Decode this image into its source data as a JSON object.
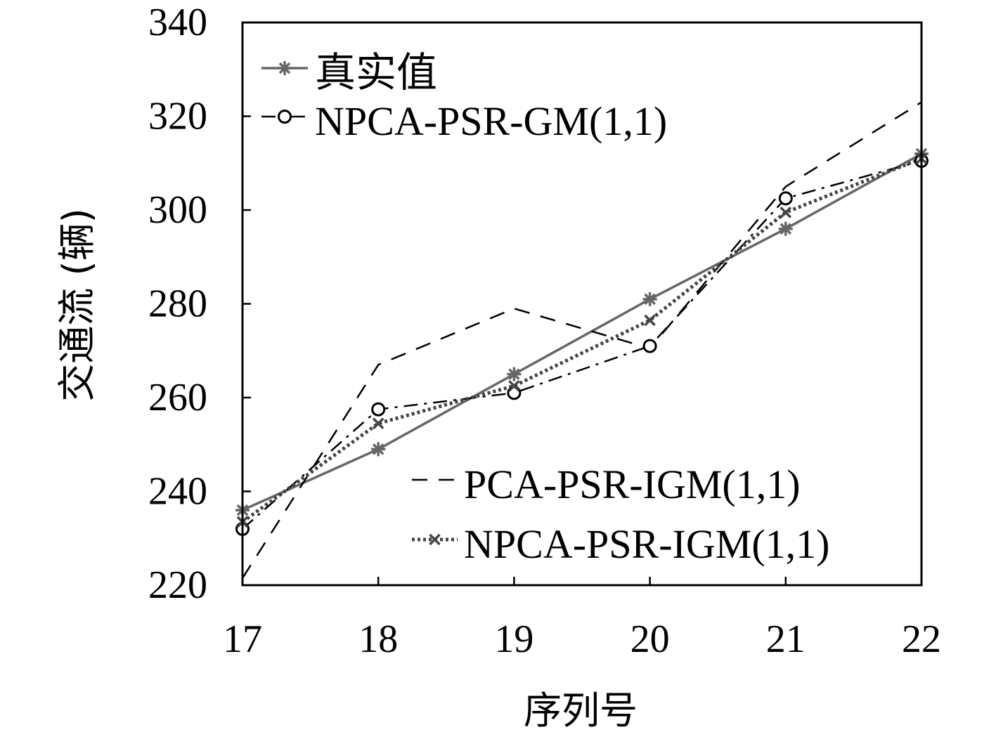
{
  "chart_data": {
    "type": "line",
    "title": "",
    "xlabel": "序列号",
    "ylabel": "交通流 (辆)",
    "x": [
      17,
      18,
      19,
      20,
      21,
      22
    ],
    "xlim": [
      17,
      22
    ],
    "ylim": [
      220,
      340
    ],
    "xticks": [
      "17",
      "18",
      "19",
      "20",
      "21",
      "22"
    ],
    "yticks": [
      "220",
      "240",
      "260",
      "280",
      "300",
      "320",
      "340"
    ],
    "grid": false,
    "legend": {
      "upper_left": [
        "真实值",
        "NPCA-PSR-GM(1,1)"
      ],
      "lower_right": [
        "PCA-PSR-IGM(1,1)",
        "NPCA-PSR-IGM(1,1)"
      ]
    },
    "series": [
      {
        "name": "真实值",
        "values": [
          236,
          249,
          265,
          281,
          296,
          312
        ],
        "style": "solid",
        "marker": "star",
        "color": "#666666"
      },
      {
        "name": "NPCA-PSR-GM(1,1)",
        "values": [
          232,
          257.5,
          261,
          271,
          302.5,
          310.5
        ],
        "style": "dashdot",
        "marker": "circle",
        "color": "#000000"
      },
      {
        "name": "PCA-PSR-IGM(1,1)",
        "values": [
          221.5,
          267,
          279,
          270.5,
          305,
          323
        ],
        "style": "dashed",
        "marker": "none",
        "color": "#000000"
      },
      {
        "name": "NPCA-PSR-IGM(1,1)",
        "values": [
          233.5,
          254.5,
          262.5,
          276.5,
          299.5,
          311
        ],
        "style": "dotted",
        "marker": "x",
        "color": "#444444"
      }
    ]
  }
}
